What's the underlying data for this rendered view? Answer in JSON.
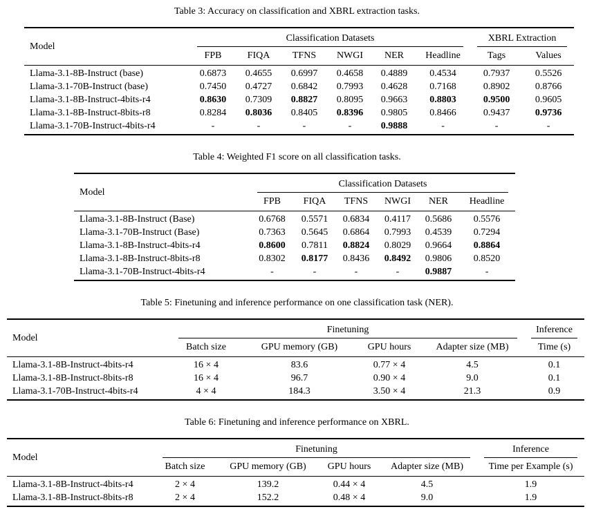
{
  "tables": [
    {
      "caption": "Table 3: Accuracy on classification and XBRL extraction tasks.",
      "model_header": "Model",
      "group1": "Classification Datasets",
      "group2": "XBRL Extraction",
      "columns": [
        "FPB",
        "FIQA",
        "TFNS",
        "NWGI",
        "NER",
        "Headline",
        "Tags",
        "Values"
      ],
      "rows": [
        [
          "Llama-3.1-8B-Instruct (base)",
          "0.6873",
          "0.4655",
          "0.6997",
          "0.4658",
          "0.4889",
          "0.4534",
          "0.7937",
          "0.5526"
        ],
        [
          "Llama-3.1-70B-Instruct (base)",
          "0.7450",
          "0.4727",
          "0.6842",
          "0.7993",
          "0.4628",
          "0.7168",
          "0.8902",
          "0.8766"
        ],
        [
          "Llama-3.1-8B-Instruct-4bits-r4",
          {
            "t": "0.8630",
            "b": true
          },
          "0.7309",
          {
            "t": "0.8827",
            "b": true
          },
          "0.8095",
          "0.9663",
          {
            "t": "0.8803",
            "b": true
          },
          {
            "t": "0.9500",
            "b": true
          },
          "0.9605"
        ],
        [
          "Llama-3.1-8B-Instruct-8bits-r8",
          "0.8284",
          {
            "t": "0.8036",
            "b": true
          },
          "0.8405",
          {
            "t": "0.8396",
            "b": true
          },
          "0.9805",
          "0.8466",
          "0.9437",
          {
            "t": "0.9736",
            "b": true
          }
        ],
        [
          "Llama-3.1-70B-Instruct-4bits-r4",
          "-",
          "-",
          "-",
          "-",
          {
            "t": "0.9888",
            "b": true
          },
          "-",
          "-",
          "-"
        ]
      ]
    },
    {
      "caption": "Table 4: Weighted F1 score on all classification tasks.",
      "model_header": "Model",
      "group1": "Classification Datasets",
      "columns": [
        "FPB",
        "FIQA",
        "TFNS",
        "NWGI",
        "NER",
        "Headline"
      ],
      "rows": [
        [
          "Llama-3.1-8B-Instruct (Base)",
          "0.6768",
          "0.5571",
          "0.6834",
          "0.4117",
          "0.5686",
          "0.5576"
        ],
        [
          "Llama-3.1-70B-Instruct (Base)",
          "0.7363",
          "0.5645",
          "0.6864",
          "0.7993",
          "0.4539",
          "0.7294"
        ],
        [
          "Llama-3.1-8B-Instruct-4bits-r4",
          {
            "t": "0.8600",
            "b": true
          },
          "0.7811",
          {
            "t": "0.8824",
            "b": true
          },
          "0.8029",
          "0.9664",
          {
            "t": "0.8864",
            "b": true
          }
        ],
        [
          "Llama-3.1-8B-Instruct-8bits-r8",
          "0.8302",
          {
            "t": "0.8177",
            "b": true
          },
          "0.8436",
          {
            "t": "0.8492",
            "b": true
          },
          "0.9806",
          "0.8520"
        ],
        [
          "Llama-3.1-70B-Instruct-4bits-r4",
          "-",
          "-",
          "-",
          "-",
          {
            "t": "0.9887",
            "b": true
          },
          "-"
        ]
      ]
    },
    {
      "caption": "Table 5: Finetuning and inference performance on one classification task (NER).",
      "model_header": "Model",
      "group1": "Finetuning",
      "group2": "Inference",
      "columns": [
        "Batch size",
        "GPU memory (GB)",
        "GPU hours",
        "Adapter size (MB)",
        "Time (s)"
      ],
      "rows": [
        [
          "Llama-3.1-8B-Instruct-4bits-r4",
          "16 × 4",
          "83.6",
          "0.77 × 4",
          "4.5",
          "0.1"
        ],
        [
          "Llama-3.1-8B-Instruct-8bits-r8",
          "16 × 4",
          "96.7",
          "0.90 × 4",
          "9.0",
          "0.1"
        ],
        [
          "Llama-3.1-70B-Instruct-4bits-r4",
          "4 × 4",
          "184.3",
          "3.50 × 4",
          "21.3",
          "0.9"
        ]
      ]
    },
    {
      "caption": "Table 6: Finetuning and inference performance on XBRL.",
      "model_header": "Model",
      "group1": "Finetuning",
      "group2": "Inference",
      "columns": [
        "Batch size",
        "GPU memory (GB)",
        "GPU hours",
        "Adapter size (MB)",
        "Time per Example (s)"
      ],
      "rows": [
        [
          "Llama-3.1-8B-Instruct-4bits-r4",
          "2 × 4",
          "139.2",
          "0.44 × 4",
          "4.5",
          "1.9"
        ],
        [
          "Llama-3.1-8B-Instruct-8bits-r8",
          "2 × 4",
          "152.2",
          "0.48 × 4",
          "9.0",
          "1.9"
        ]
      ]
    }
  ]
}
